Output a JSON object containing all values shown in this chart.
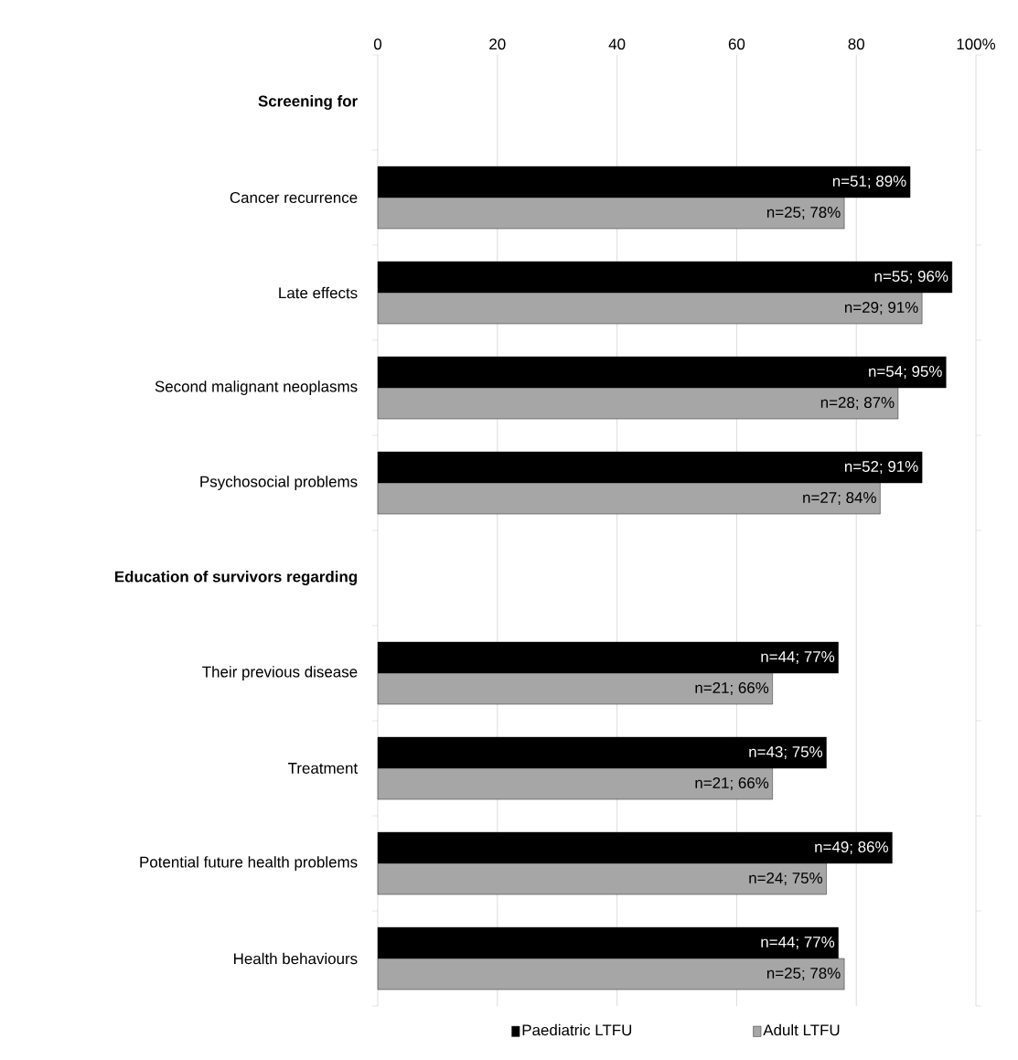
{
  "chart_data": {
    "type": "bar",
    "orientation": "horizontal",
    "categories": [
      "Screening for",
      "Cancer recurrence",
      "Late effects",
      "Second malignant neoplasms",
      "Psychosocial problems",
      "Education of survivors regarding",
      "Their previous disease",
      "Treatment",
      "Potential future health problems",
      "Health behaviours"
    ],
    "series": [
      {
        "name": "Paediatric LTFU",
        "color": "#000000",
        "values": [
          null,
          89,
          96,
          95,
          91,
          null,
          77,
          75,
          86,
          77
        ],
        "value_labels": [
          null,
          "n=51; 89%",
          "n=55; 96%",
          "n=54; 95%",
          "n=52; 91%",
          null,
          "n=44; 77%",
          "n=43; 75%",
          "n=49; 86%",
          "n=44; 77%"
        ]
      },
      {
        "name": "Adult LTFU",
        "color": "#a6a6a6",
        "values": [
          null,
          78,
          91,
          87,
          84,
          null,
          66,
          66,
          75,
          78
        ],
        "value_labels": [
          null,
          "n=25; 78%",
          "n=29; 91%",
          "n=28; 87%",
          "n=27; 84%",
          null,
          "n=21; 66%",
          "n=21; 66%",
          "n=24; 75%",
          "n=25; 78%"
        ]
      }
    ],
    "xlim": [
      0,
      100
    ],
    "xticks": [
      0,
      20,
      40,
      60,
      80,
      {
        "value": 100,
        "label": "100%"
      }
    ],
    "grid": "x",
    "legend": "bottom"
  }
}
